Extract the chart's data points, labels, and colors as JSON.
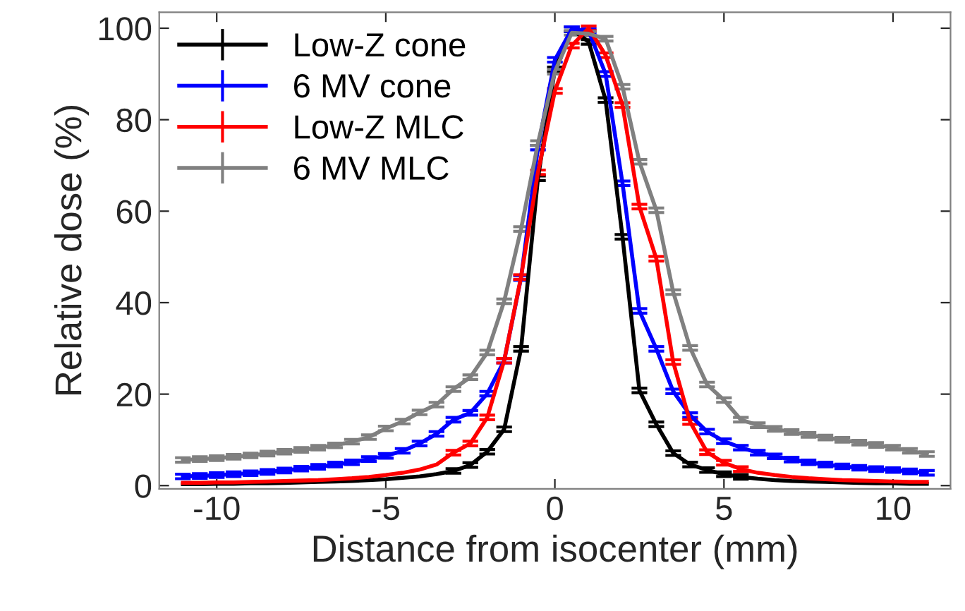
{
  "chart_data": {
    "type": "line",
    "xlabel": "Distance from isocenter (mm)",
    "ylabel": "Relative dose (%)",
    "x": [
      -11,
      -10.5,
      -10,
      -9.5,
      -9,
      -8.5,
      -8,
      -7.5,
      -7,
      -6.5,
      -6,
      -5.5,
      -5,
      -4.5,
      -4,
      -3.5,
      -3,
      -2.5,
      -2,
      -1.5,
      -1,
      -0.5,
      0,
      0.5,
      1,
      1.5,
      2,
      2.5,
      3,
      3.5,
      4,
      4.5,
      5,
      5.5,
      6,
      6.5,
      7,
      7.5,
      8,
      8.5,
      9,
      9.5,
      10,
      10.5,
      11
    ],
    "xlim": [
      -11.7,
      11.7
    ],
    "ylim": [
      -0.7,
      103.5
    ],
    "xticks": [
      -10,
      -5,
      0,
      5,
      10
    ],
    "yticks": [
      0,
      20,
      40,
      60,
      80,
      100
    ],
    "grid": false,
    "legend": "top left",
    "marker": "none",
    "line_style": "solid",
    "series": [
      {
        "name": "Low-Z cone",
        "color": "#000000",
        "values": [
          0.3,
          0.3,
          0.4,
          0.4,
          0.5,
          0.5,
          0.6,
          0.7,
          0.8,
          0.9,
          1.0,
          1.2,
          1.4,
          1.7,
          2.0,
          2.5,
          3.2,
          4.5,
          7.4,
          12.3,
          29.9,
          67.2,
          91,
          99.8,
          97,
          84.3,
          54.4,
          20.8,
          13.4,
          7.1,
          4.6,
          3.4,
          2.5,
          1.9,
          1.5,
          1.2,
          1.0,
          0.9,
          0.8,
          0.7,
          0.6,
          0.5,
          0.5,
          0.4,
          0.4
        ],
        "errors": [
          null,
          null,
          null,
          null,
          null,
          null,
          null,
          null,
          null,
          null,
          null,
          null,
          null,
          null,
          null,
          null,
          0.5,
          0.5,
          0.5,
          0.5,
          0.5,
          0.5,
          0.5,
          0.5,
          0.5,
          0.5,
          0.5,
          0.5,
          0.5,
          0.5,
          0.5,
          0.5,
          0.5,
          0.5,
          null,
          null,
          null,
          null,
          null,
          null,
          null,
          null,
          null,
          null,
          null
        ]
      },
      {
        "name": "6 MV cone",
        "color": "#0000ff",
        "values": [
          2.0,
          2.1,
          2.3,
          2.5,
          2.7,
          3.0,
          3.3,
          3.7,
          4.1,
          4.6,
          5.1,
          5.8,
          6.5,
          7.6,
          9.2,
          11.3,
          14.4,
          15.9,
          20.1,
          27.3,
          45.4,
          73.9,
          93.1,
          99.8,
          99.4,
          90,
          66.1,
          38.2,
          29.9,
          20.6,
          15.4,
          11.8,
          9.7,
          8.3,
          7.2,
          6.4,
          5.7,
          5.1,
          4.6,
          4.2,
          3.9,
          3.6,
          3.4,
          3.1,
          2.8
        ],
        "errors": [
          0.5,
          0.5,
          0.5,
          0.5,
          0.5,
          0.5,
          0.5,
          0.5,
          0.5,
          0.5,
          0.5,
          0.5,
          0.5,
          0.5,
          0.5,
          0.5,
          0.5,
          0.5,
          0.5,
          0.5,
          0.5,
          0.5,
          0.5,
          0.5,
          0.5,
          0.5,
          0.5,
          0.5,
          0.5,
          0.5,
          0.5,
          0.5,
          0.5,
          0.5,
          0.5,
          0.5,
          0.5,
          0.5,
          0.5,
          0.5,
          0.5,
          0.5,
          0.5,
          0.5,
          0.5
        ]
      },
      {
        "name": "Low-Z MLC",
        "color": "#ff0000",
        "values": [
          0.6,
          0.6,
          0.7,
          0.7,
          0.8,
          0.9,
          1.0,
          1.1,
          1.2,
          1.4,
          1.6,
          1.9,
          2.3,
          2.8,
          3.5,
          4.6,
          7.2,
          9.2,
          14.9,
          27.3,
          45.6,
          68.5,
          86.3,
          96.2,
          100,
          94.1,
          83.2,
          61,
          49.6,
          27,
          13.9,
          7.3,
          5.0,
          3.6,
          2.8,
          2.3,
          1.9,
          1.6,
          1.4,
          1.2,
          1.1,
          1.0,
          0.9,
          0.8,
          0.8
        ],
        "errors": [
          null,
          null,
          null,
          null,
          null,
          null,
          null,
          null,
          null,
          null,
          null,
          null,
          null,
          null,
          null,
          null,
          0.5,
          0.5,
          0.5,
          0.5,
          0.5,
          0.5,
          0.5,
          0.5,
          0.5,
          0.5,
          0.5,
          0.5,
          0.5,
          0.5,
          0.5,
          0.5,
          0.5,
          0.5,
          null,
          null,
          null,
          null,
          null,
          null,
          null,
          null,
          null,
          null,
          null
        ]
      },
      {
        "name": "6 MV MLC",
        "color": "#808080",
        "values": [
          5.6,
          5.8,
          6.0,
          6.3,
          6.6,
          7.0,
          7.4,
          7.8,
          8.3,
          8.8,
          9.6,
          10.6,
          12.5,
          14,
          16,
          17.7,
          21.1,
          23.7,
          29.1,
          40.3,
          56.1,
          74.9,
          90.5,
          99,
          98.8,
          97.7,
          87.2,
          70.8,
          60.2,
          42.3,
          30.1,
          22.1,
          18.7,
          14.4,
          13.2,
          12.4,
          11.7,
          11.1,
          10.5,
          10,
          9.4,
          8.9,
          8.3,
          7.6,
          6.9
        ],
        "errors": [
          0.5,
          0.5,
          0.5,
          0.5,
          0.5,
          0.5,
          0.5,
          0.5,
          0.5,
          0.5,
          0.5,
          0.5,
          0.5,
          0.5,
          0.5,
          0.5,
          0.5,
          0.5,
          0.5,
          0.5,
          0.5,
          0.5,
          0.5,
          0.5,
          0.5,
          0.5,
          0.5,
          0.5,
          0.5,
          0.5,
          0.5,
          0.5,
          0.5,
          0.5,
          0.5,
          0.5,
          0.5,
          0.5,
          0.5,
          0.5,
          0.5,
          0.5,
          0.5,
          0.5,
          0.5
        ]
      }
    ]
  }
}
